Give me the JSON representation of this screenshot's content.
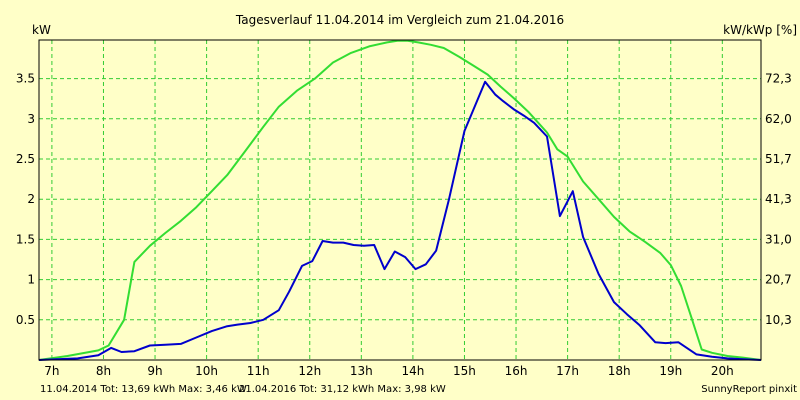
{
  "colors": {
    "background": "#ffffc8",
    "grid": "#33cc33",
    "series_2014": "#0000cc",
    "series_2016": "#33dd33",
    "axis": "#000000"
  },
  "chart_data": {
    "type": "line",
    "title": "Tagesverlauf 11.04.2014 im Vergleich zum 21.04.2016",
    "ylabel_left": "kW",
    "ylabel_right": "kW/kWp [%]",
    "xlim": [
      6.75,
      20.75
    ],
    "ylim": [
      0,
      3.98
    ],
    "grid": true,
    "x_ticks": [
      7,
      8,
      9,
      10,
      11,
      12,
      13,
      14,
      15,
      16,
      17,
      18,
      19,
      20
    ],
    "x_tick_labels": [
      "7h",
      "8h",
      "9h",
      "10h",
      "11h",
      "12h",
      "13h",
      "14h",
      "15h",
      "16h",
      "17h",
      "18h",
      "19h",
      "20h"
    ],
    "y_ticks_left": [
      0.5,
      1,
      1.5,
      2,
      2.5,
      3,
      3.5
    ],
    "y_tick_labels_left": [
      "0.5",
      "1",
      "1.5",
      "2",
      "2.5",
      "3",
      "3.5"
    ],
    "y_ticks_right": [
      0.5,
      1,
      1.5,
      2,
      2.5,
      3,
      3.5
    ],
    "y_tick_labels_right": [
      "10,3",
      "20,7",
      "31,0",
      "41,3",
      "51,7",
      "62,0",
      "72,3"
    ],
    "series": [
      {
        "name": "11.04.2014",
        "color": "#0000cc",
        "x": [
          6.75,
          7.5,
          7.9,
          8.15,
          8.35,
          8.6,
          8.9,
          9.2,
          9.5,
          9.8,
          10.1,
          10.4,
          10.6,
          10.85,
          11.1,
          11.4,
          11.6,
          11.85,
          12.05,
          12.25,
          12.45,
          12.65,
          12.85,
          13.05,
          13.25,
          13.45,
          13.65,
          13.85,
          14.05,
          14.25,
          14.45,
          14.7,
          15.0,
          15.4,
          15.6,
          15.75,
          15.95,
          16.15,
          16.35,
          16.6,
          16.85,
          17.1,
          17.3,
          17.6,
          17.9,
          18.15,
          18.4,
          18.7,
          18.9,
          19.15,
          19.5,
          19.8,
          20.1,
          20.4,
          20.75
        ],
        "values": [
          0,
          0.02,
          0.06,
          0.15,
          0.1,
          0.11,
          0.18,
          0.19,
          0.2,
          0.28,
          0.36,
          0.42,
          0.44,
          0.46,
          0.5,
          0.62,
          0.85,
          1.17,
          1.23,
          1.48,
          1.46,
          1.46,
          1.43,
          1.42,
          1.43,
          1.13,
          1.35,
          1.28,
          1.13,
          1.19,
          1.36,
          2.0,
          2.85,
          3.46,
          3.3,
          3.22,
          3.12,
          3.04,
          2.95,
          2.78,
          1.79,
          2.1,
          1.53,
          1.07,
          0.72,
          0.57,
          0.43,
          0.22,
          0.21,
          0.22,
          0.07,
          0.04,
          0.02,
          0.01,
          0
        ]
      },
      {
        "name": "21.04.2016",
        "color": "#33dd33",
        "x": [
          6.75,
          7.3,
          7.9,
          8.1,
          8.4,
          8.6,
          8.9,
          9.2,
          9.5,
          9.8,
          10.1,
          10.4,
          10.75,
          11.1,
          11.4,
          11.75,
          12.1,
          12.45,
          12.8,
          13.15,
          13.5,
          13.7,
          13.9,
          14.1,
          14.35,
          14.6,
          14.9,
          15.2,
          15.45,
          15.7,
          15.95,
          16.25,
          16.6,
          16.8,
          17.0,
          17.3,
          17.6,
          17.9,
          18.2,
          18.5,
          18.8,
          19.0,
          19.2,
          19.4,
          19.6,
          19.8,
          20.1,
          20.4,
          20.75
        ],
        "values": [
          0,
          0.05,
          0.12,
          0.18,
          0.5,
          1.22,
          1.42,
          1.58,
          1.73,
          1.9,
          2.1,
          2.3,
          2.6,
          2.9,
          3.15,
          3.35,
          3.5,
          3.7,
          3.82,
          3.9,
          3.95,
          3.97,
          3.97,
          3.95,
          3.92,
          3.88,
          3.77,
          3.65,
          3.55,
          3.4,
          3.26,
          3.08,
          2.83,
          2.62,
          2.53,
          2.22,
          2.0,
          1.78,
          1.6,
          1.47,
          1.33,
          1.18,
          0.92,
          0.53,
          0.13,
          0.09,
          0.05,
          0.03,
          0
        ]
      }
    ],
    "footer": {
      "left_2014": "11.04.2014 Tot: 13,69 kWh Max: 3,46 kW",
      "left_2016": "21.04.2016 Tot: 31,12 kWh Max: 3,98 kW",
      "right": "SunnyReport pinxit"
    }
  }
}
